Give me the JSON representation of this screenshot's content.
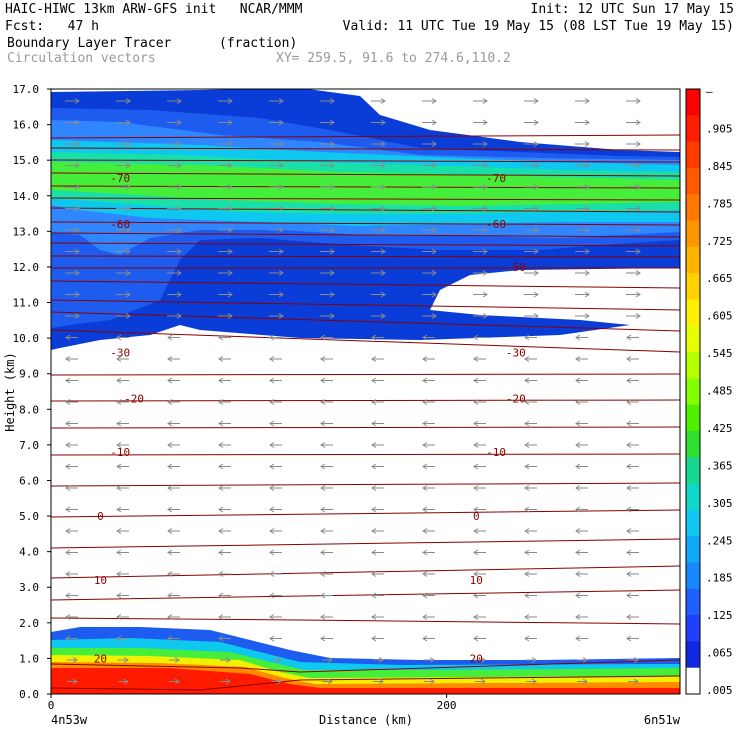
{
  "header": {
    "model_line": "HAIC-HIWC 13km ARW-GFS init   NCAR/MMM",
    "init": "Init: 12 UTC Sun 17 May 15",
    "fcst": "Fcst:   47 h",
    "valid": "Valid: 11 UTC Tue 19 May 15 (08 LST Tue 19 May 15)",
    "field": "Boundary Layer Tracer",
    "field_unit": "(fraction)",
    "overlay": "Circulation vectors",
    "xy": "XY= 259.5, 91.6 to 274.6,110.2"
  },
  "chart_data": {
    "type": "cross-section contour",
    "ylabel": "Height (km)",
    "xlabel": "Distance (km)",
    "ylim": [
      0,
      17
    ],
    "y_ticks": [
      "0.0",
      "1.0",
      "2.0",
      "3.0",
      "4.0",
      "5.0",
      "6.0",
      "7.0",
      "8.0",
      "9.0",
      "10.0",
      "11.0",
      "12.0",
      "13.0",
      "14.0",
      "15.0",
      "16.0",
      "17.0"
    ],
    "x_ticks": [
      "0",
      "200"
    ],
    "x_endpoints": {
      "left": "4n53w",
      "right": "6n51w"
    },
    "colorbar_labels": [
      "–",
      ".905",
      ".845",
      ".785",
      ".725",
      ".665",
      ".605",
      ".545",
      ".485",
      ".425",
      ".365",
      ".305",
      ".245",
      ".185",
      ".125",
      ".065",
      ".005"
    ],
    "contour_labels": [
      {
        "text": "-70",
        "x": 35,
        "y": 14.5
      },
      {
        "text": "-70",
        "x": 225,
        "y": 14.5
      },
      {
        "text": "-60",
        "x": 35,
        "y": 13.2
      },
      {
        "text": "-60",
        "x": 225,
        "y": 13.2
      },
      {
        "text": "-50",
        "x": 235,
        "y": 12.0
      },
      {
        "text": "-30",
        "x": 35,
        "y": 9.6
      },
      {
        "text": "-30",
        "x": 235,
        "y": 9.6
      },
      {
        "text": "-20",
        "x": 42,
        "y": 8.3
      },
      {
        "text": "-20",
        "x": 235,
        "y": 8.3
      },
      {
        "text": "-10",
        "x": 35,
        "y": 6.8
      },
      {
        "text": "-10",
        "x": 225,
        "y": 6.8
      },
      {
        "text": "0",
        "x": 25,
        "y": 5.0
      },
      {
        "text": "0",
        "x": 215,
        "y": 5.0
      },
      {
        "text": "10",
        "x": 25,
        "y": 3.2
      },
      {
        "text": "10",
        "x": 215,
        "y": 3.2
      },
      {
        "text": "20",
        "x": 25,
        "y": 1.0
      },
      {
        "text": "20",
        "x": 215,
        "y": 1.0
      }
    ]
  }
}
